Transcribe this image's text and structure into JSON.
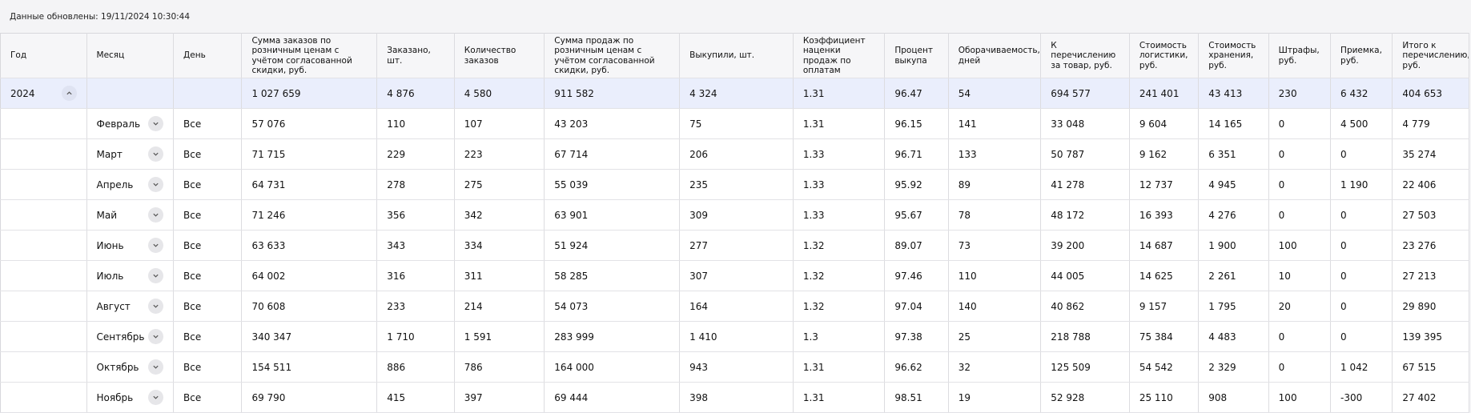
{
  "updated_label": "Данные обновлены: 19/11/2024 10:30:44",
  "headers": [
    "Год",
    "Месяц",
    "День",
    "Сумма заказов по розничным ценам с учётом согласованной скидки, руб.",
    "Заказано, шт.",
    "Количество заказов",
    "Сумма продаж по розничным ценам с учётом согласованной скидки, руб.",
    "Выкупили, шт.",
    "Коэффициент наценки продаж по оплатам",
    "Процент выкупа",
    "Оборачиваемость, дней",
    "К перечислению за товар, руб.",
    "Стоимость логистики, руб.",
    "Стоимость хранения, руб.",
    "Штрафы, руб.",
    "Приемка, руб.",
    "Итого к перечислению, руб."
  ],
  "year_row": {
    "year": "2024",
    "values": [
      "1 027 659",
      "4 876",
      "4 580",
      "911 582",
      "4 324",
      "1.31",
      "96.47",
      "54",
      "694 577",
      "241 401",
      "43 413",
      "230",
      "6 432",
      "404 653"
    ]
  },
  "month_rows": [
    {
      "month": "Февраль",
      "day": "Все",
      "values": [
        "57 076",
        "110",
        "107",
        "43 203",
        "75",
        "1.31",
        "96.15",
        "141",
        "33 048",
        "9 604",
        "14 165",
        "0",
        "4 500",
        "4 779"
      ]
    },
    {
      "month": "Март",
      "day": "Все",
      "values": [
        "71 715",
        "229",
        "223",
        "67 714",
        "206",
        "1.33",
        "96.71",
        "133",
        "50 787",
        "9 162",
        "6 351",
        "0",
        "0",
        "35 274"
      ]
    },
    {
      "month": "Апрель",
      "day": "Все",
      "values": [
        "64 731",
        "278",
        "275",
        "55 039",
        "235",
        "1.33",
        "95.92",
        "89",
        "41 278",
        "12 737",
        "4 945",
        "0",
        "1 190",
        "22 406"
      ]
    },
    {
      "month": "Май",
      "day": "Все",
      "values": [
        "71 246",
        "356",
        "342",
        "63 901",
        "309",
        "1.33",
        "95.67",
        "78",
        "48 172",
        "16 393",
        "4 276",
        "0",
        "0",
        "27 503"
      ]
    },
    {
      "month": "Июнь",
      "day": "Все",
      "values": [
        "63 633",
        "343",
        "334",
        "51 924",
        "277",
        "1.32",
        "89.07",
        "73",
        "39 200",
        "14 687",
        "1 900",
        "100",
        "0",
        "23 276"
      ]
    },
    {
      "month": "Июль",
      "day": "Все",
      "values": [
        "64 002",
        "316",
        "311",
        "58 285",
        "307",
        "1.32",
        "97.46",
        "110",
        "44 005",
        "14 625",
        "2 261",
        "10",
        "0",
        "27 213"
      ]
    },
    {
      "month": "Август",
      "day": "Все",
      "values": [
        "70 608",
        "233",
        "214",
        "54 073",
        "164",
        "1.32",
        "97.04",
        "140",
        "40 862",
        "9 157",
        "1 795",
        "20",
        "0",
        "29 890"
      ]
    },
    {
      "month": "Сентябрь",
      "day": "Все",
      "values": [
        "340 347",
        "1 710",
        "1 591",
        "283 999",
        "1 410",
        "1.3",
        "97.38",
        "25",
        "218 788",
        "75 384",
        "4 483",
        "0",
        "0",
        "139 395"
      ]
    },
    {
      "month": "Октябрь",
      "day": "Все",
      "values": [
        "154 511",
        "886",
        "786",
        "164 000",
        "943",
        "1.31",
        "96.62",
        "32",
        "125 509",
        "54 542",
        "2 329",
        "0",
        "1 042",
        "67 515"
      ]
    },
    {
      "month": "Ноябрь",
      "day": "Все",
      "values": [
        "69 790",
        "415",
        "397",
        "69 444",
        "398",
        "1.31",
        "98.51",
        "19",
        "52 928",
        "25 110",
        "908",
        "100",
        "-300",
        "27 402"
      ]
    }
  ]
}
